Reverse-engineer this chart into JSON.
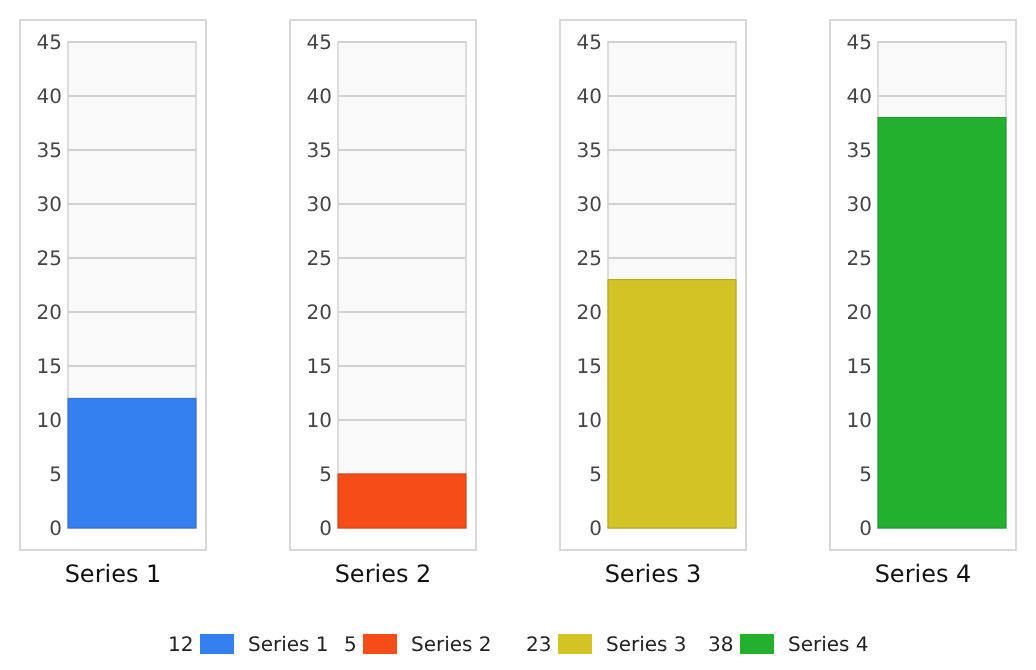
{
  "chart_data": [
    {
      "type": "bar",
      "categories": [
        null
      ],
      "xlabel": "Series 1",
      "series": [
        {
          "name": "Series 1",
          "color": "#3580f0",
          "values": [
            12
          ]
        }
      ],
      "ylim": [
        0,
        45
      ],
      "yticks": [
        0,
        5,
        10,
        15,
        20,
        25,
        30,
        35,
        40,
        45
      ],
      "grid": "y",
      "legend": "bottom",
      "annotations": [
        "12"
      ]
    },
    {
      "type": "bar",
      "categories": [
        null
      ],
      "xlabel": "Series 2",
      "series": [
        {
          "name": "Series 2",
          "color": "#f64c18",
          "values": [
            5
          ]
        }
      ],
      "ylim": [
        0,
        45
      ],
      "yticks": [
        0,
        5,
        10,
        15,
        20,
        25,
        30,
        35,
        40,
        45
      ],
      "grid": "y",
      "legend": "bottom",
      "annotations": [
        "5"
      ]
    },
    {
      "type": "bar",
      "categories": [
        null
      ],
      "xlabel": "Series 3",
      "series": [
        {
          "name": "Series 3",
          "color": "#d4c324",
          "values": [
            23
          ]
        }
      ],
      "ylim": [
        0,
        45
      ],
      "yticks": [
        0,
        5,
        10,
        15,
        20,
        25,
        30,
        35,
        40,
        45
      ],
      "grid": "y",
      "legend": "bottom",
      "annotations": [
        "23"
      ]
    },
    {
      "type": "bar",
      "categories": [
        null
      ],
      "xlabel": "Series 4",
      "series": [
        {
          "name": "Series 4",
          "color": "#22b02e",
          "values": [
            38
          ]
        }
      ],
      "ylim": [
        0,
        45
      ],
      "yticks": [
        0,
        5,
        10,
        15,
        20,
        25,
        30,
        35,
        40,
        45
      ],
      "grid": "y",
      "legend": "bottom",
      "annotations": [
        "38"
      ]
    }
  ]
}
